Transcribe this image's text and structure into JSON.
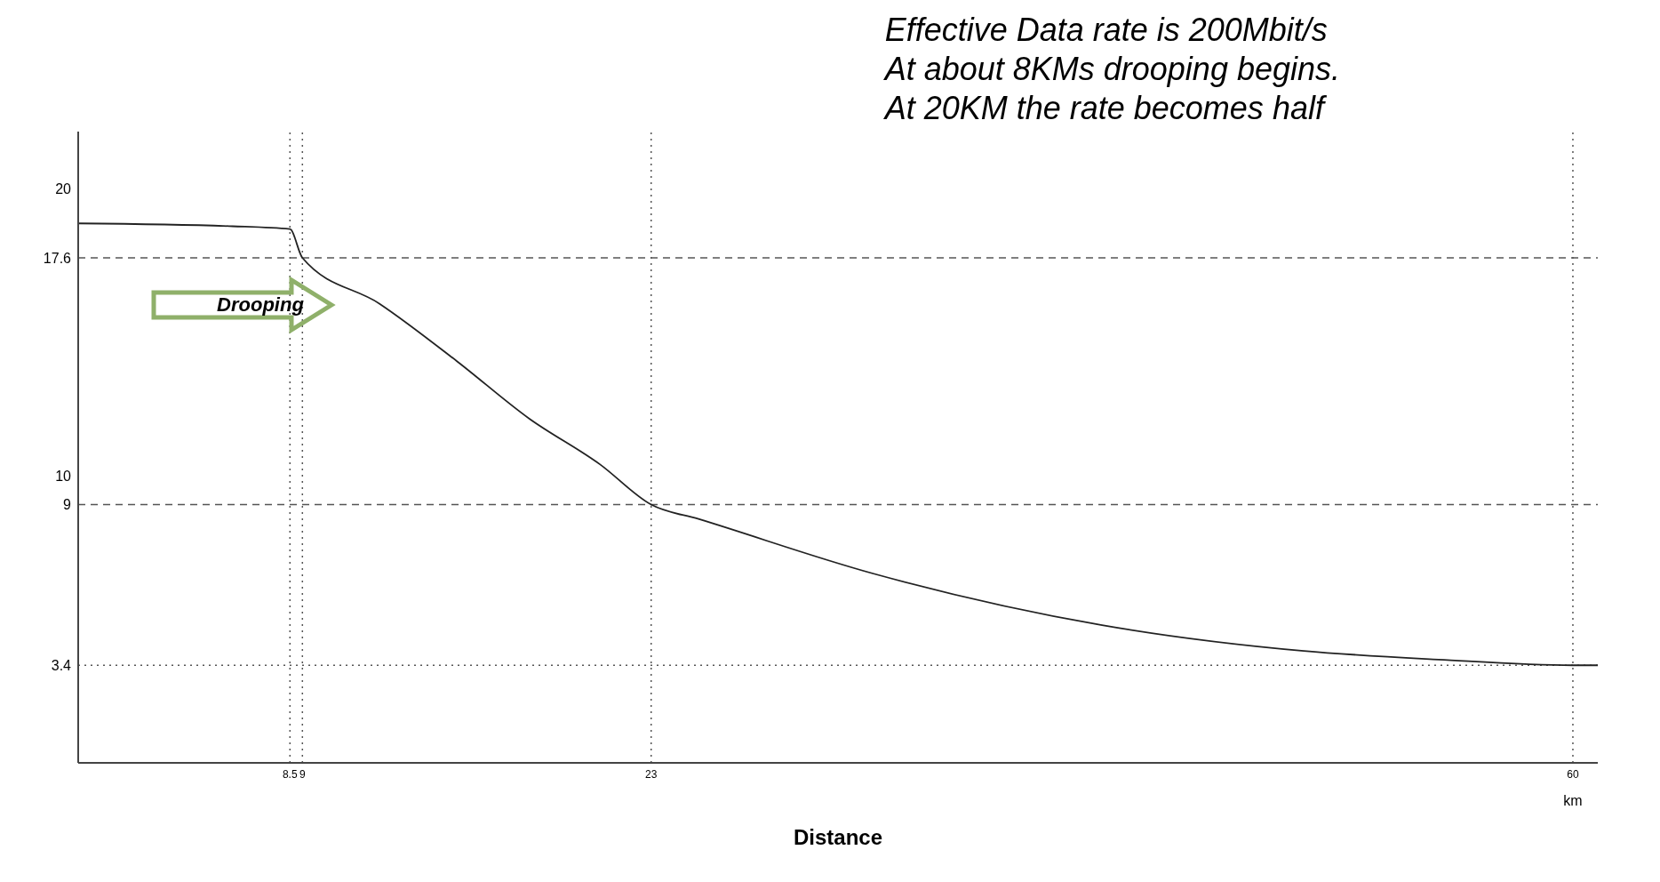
{
  "chart_data": {
    "type": "line",
    "xlabel": "Distance",
    "x": [
      0,
      6.2,
      8.5,
      9,
      12.1,
      15.2,
      18.1,
      20.95,
      23,
      24.9,
      31.9,
      41.1,
      49.2,
      54.6,
      60,
      61
    ],
    "series": [
      {
        "color": "#222222",
        "values": [
          18.8,
          18.7,
          18.6,
          17.6,
          16.0,
          14.0,
          12.0,
          10.4,
          9,
          8.5,
          6.6,
          4.8,
          3.9,
          3.6,
          3.4,
          3.4
        ]
      }
    ],
    "xlim": [
      0,
      61
    ],
    "xticks": [
      8.5,
      9,
      23,
      60
    ],
    "ylim": [
      0,
      22
    ],
    "yticks": [
      3.4,
      9,
      10,
      17.6,
      20
    ],
    "ref_lines": [
      {
        "axis": "x",
        "value": 8.5,
        "line_style": "dotted"
      },
      {
        "axis": "x",
        "value": 9,
        "line_style": "dotted"
      },
      {
        "axis": "x",
        "value": 23,
        "line_style": "dotted"
      },
      {
        "axis": "x",
        "value": 60,
        "line_style": "dotted"
      },
      {
        "axis": "y",
        "value": 17.6,
        "line_style": "dashed"
      },
      {
        "axis": "y",
        "value": 9,
        "line_style": "dashed"
      },
      {
        "axis": "y",
        "value": 3.4,
        "line_style": "dotted"
      }
    ],
    "annotations": [
      "Effective Data rate is 200Mbit/s",
      "At about 8KMs drooping begins.",
      "At 20KM the rate becomes half",
      "Drooping",
      "km"
    ]
  }
}
